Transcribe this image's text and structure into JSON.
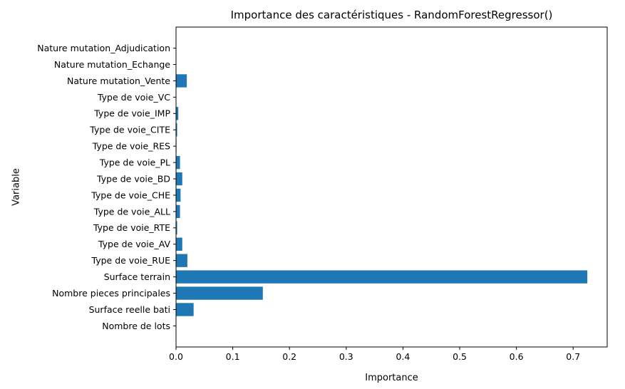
{
  "chart_data": {
    "type": "bar",
    "orientation": "horizontal",
    "title": "Importance des caractéristiques - RandomForestRegressor()",
    "xlabel": "Importance",
    "ylabel": "Variable",
    "xlim": [
      0,
      0.76
    ],
    "xticks": [
      "0.0",
      "0.1",
      "0.2",
      "0.3",
      "0.4",
      "0.5",
      "0.6",
      "0.7"
    ],
    "bar_color": "#1f77b4",
    "grid": false,
    "categories": [
      "Nombre de lots",
      "Surface reelle bati",
      "Nombre pieces principales",
      "Surface terrain",
      "Type de voie_RUE",
      "Type de voie_AV",
      "Type de voie_RTE",
      "Type de voie_ALL",
      "Type de voie_CHE",
      "Type de voie_BD",
      "Type de voie_PL",
      "Type de voie_RES",
      "Type de voie_CITE",
      "Type de voie_IMP",
      "Type de voie_VC",
      "Nature mutation_Vente",
      "Nature mutation_Echange",
      "Nature mutation_Adjudication"
    ],
    "values": [
      0.0005,
      0.031,
      0.153,
      0.725,
      0.02,
      0.011,
      0.002,
      0.007,
      0.008,
      0.011,
      0.007,
      0.0008,
      0.002,
      0.004,
      0.0005,
      0.019,
      0.0003,
      0.0002
    ]
  }
}
